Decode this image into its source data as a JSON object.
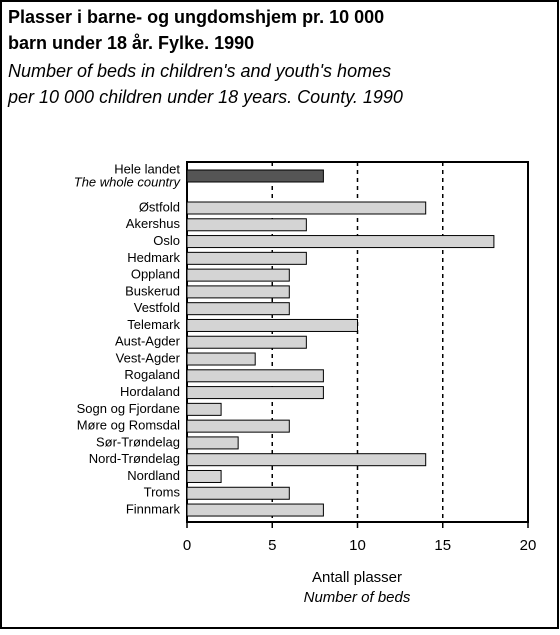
{
  "chart_data": {
    "type": "barh",
    "title": "Plasser i barne- og ungdomshjem pr. 10 000 barn under 18 år. Fylke. 1990",
    "title_lines": [
      "Plasser i barne- og ungdomshjem pr. 10 000",
      "barn under 18 år. Fylke. 1990"
    ],
    "subtitle_lines": [
      "Number of beds in children's and youth's homes",
      "per 10 000 children under 18 years. County. 1990"
    ],
    "xlabel": "Antall plasser",
    "xlabel_en": "Number of beds",
    "highlight": {
      "label": "Hele landet",
      "label_en": "The whole country",
      "value": 8,
      "color": "#555555"
    },
    "categories": [
      "Østfold",
      "Akershus",
      "Oslo",
      "Hedmark",
      "Oppland",
      "Buskerud",
      "Vestfold",
      "Telemark",
      "Aust-Agder",
      "Vest-Agder",
      "Rogaland",
      "Hordaland",
      "Sogn og Fjordane",
      "Møre og Romsdal",
      "Sør-Trøndelag",
      "Nord-Trøndelag",
      "Nordland",
      "Troms",
      "Finnmark"
    ],
    "values": [
      14,
      7,
      18,
      7,
      6,
      6,
      6,
      10,
      7,
      4,
      8,
      8,
      2,
      6,
      3,
      14,
      2,
      6,
      8
    ],
    "color": "#d4d4d4",
    "xlim": [
      0,
      20
    ],
    "xticks": [
      0,
      5,
      10,
      15,
      20
    ],
    "grid": true
  }
}
